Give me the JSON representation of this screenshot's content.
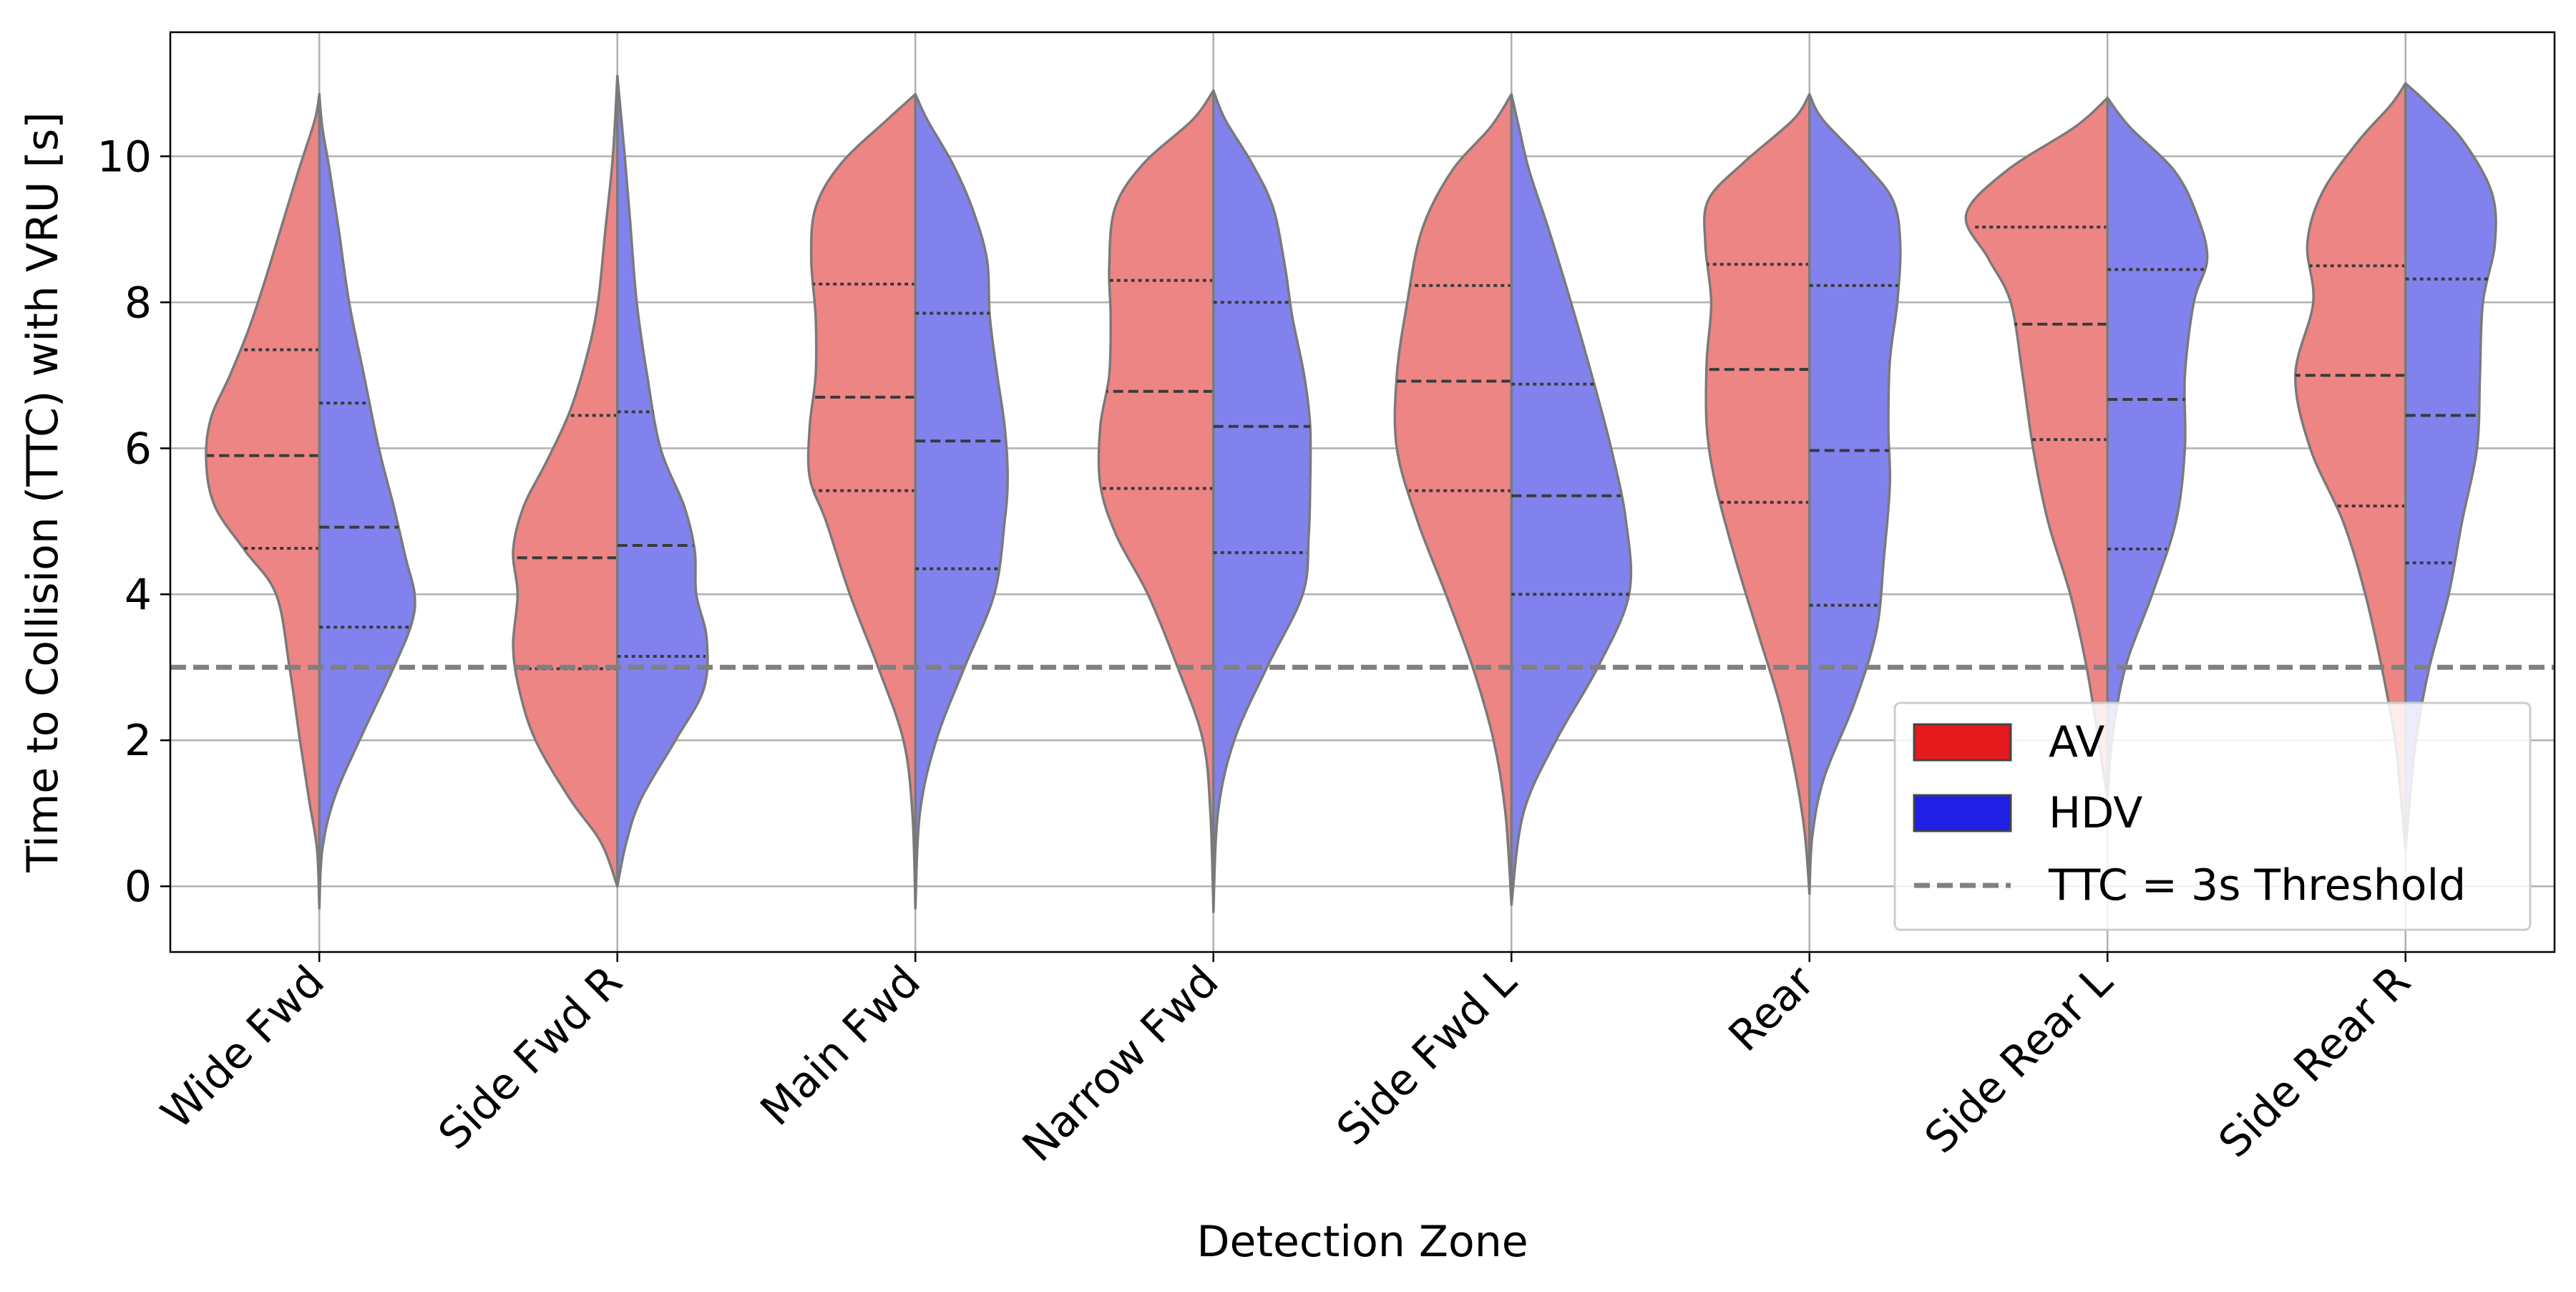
{
  "chart_data": {
    "type": "split-violin",
    "xlabel": "Detection Zone",
    "ylabel": "Time to Collision (TTC) with VRU [s]",
    "ylim": [
      -0.9,
      11.7
    ],
    "yticks": [
      0,
      2,
      4,
      6,
      8,
      10
    ],
    "ytick_labels": [
      "0",
      "2",
      "4",
      "6",
      "8",
      "10"
    ],
    "grid": true,
    "legend_position": "lower-right",
    "categories": [
      "Wide Fwd",
      "Side Fwd R",
      "Main Fwd",
      "Narrow Fwd",
      "Side Fwd L",
      "Rear",
      "Side Rear L",
      "Side Rear R"
    ],
    "series": [
      {
        "name": "AV",
        "color": "#e41a1c",
        "fill": "#ee8585",
        "quartiles": [
          [
            4.63,
            5.9,
            7.35
          ],
          [
            2.98,
            4.5,
            6.45
          ],
          [
            5.42,
            6.7,
            8.25
          ],
          [
            5.45,
            6.78,
            8.3
          ],
          [
            5.42,
            6.92,
            8.23
          ],
          [
            5.26,
            7.08,
            8.52
          ],
          [
            6.12,
            7.7,
            9.03
          ],
          [
            5.21,
            7.0,
            8.5
          ]
        ],
        "shape": [
          [
            [
              -0.3,
              0
            ],
            [
              0.5,
              0.015
            ],
            [
              1.2,
              0.07
            ],
            [
              2.0,
              0.13
            ],
            [
              3.0,
              0.2
            ],
            [
              4.0,
              0.29
            ],
            [
              4.6,
              0.5
            ],
            [
              5.2,
              0.7
            ],
            [
              5.8,
              0.76
            ],
            [
              6.4,
              0.73
            ],
            [
              7.0,
              0.6
            ],
            [
              7.6,
              0.48
            ],
            [
              8.2,
              0.38
            ],
            [
              9.0,
              0.26
            ],
            [
              9.8,
              0.14
            ],
            [
              10.5,
              0.03
            ],
            [
              10.85,
              0
            ]
          ],
          [
            [
              0.0,
              0
            ],
            [
              0.6,
              0.11
            ],
            [
              1.2,
              0.32
            ],
            [
              2.0,
              0.55
            ],
            [
              2.7,
              0.66
            ],
            [
              3.3,
              0.7
            ],
            [
              4.0,
              0.67
            ],
            [
              4.6,
              0.7
            ],
            [
              5.2,
              0.63
            ],
            [
              5.8,
              0.48
            ],
            [
              6.5,
              0.32
            ],
            [
              7.3,
              0.2
            ],
            [
              8.0,
              0.13
            ],
            [
              9.0,
              0.08
            ],
            [
              10.0,
              0.03
            ],
            [
              11.1,
              0
            ]
          ],
          [
            [
              -0.3,
              0
            ],
            [
              1.0,
              0.02
            ],
            [
              2.0,
              0.08
            ],
            [
              3.0,
              0.25
            ],
            [
              4.0,
              0.44
            ],
            [
              5.0,
              0.6
            ],
            [
              5.6,
              0.71
            ],
            [
              6.3,
              0.71
            ],
            [
              7.0,
              0.67
            ],
            [
              7.8,
              0.67
            ],
            [
              8.6,
              0.7
            ],
            [
              9.3,
              0.67
            ],
            [
              9.9,
              0.5
            ],
            [
              10.5,
              0.19
            ],
            [
              10.85,
              0
            ]
          ],
          [
            [
              -0.35,
              0
            ],
            [
              1.0,
              0.02
            ],
            [
              2.0,
              0.07
            ],
            [
              3.0,
              0.24
            ],
            [
              4.0,
              0.44
            ],
            [
              4.8,
              0.65
            ],
            [
              5.5,
              0.76
            ],
            [
              6.3,
              0.76
            ],
            [
              7.0,
              0.7
            ],
            [
              7.8,
              0.69
            ],
            [
              8.5,
              0.7
            ],
            [
              9.3,
              0.66
            ],
            [
              9.9,
              0.47
            ],
            [
              10.5,
              0.14
            ],
            [
              10.9,
              0
            ]
          ],
          [
            [
              -0.25,
              0
            ],
            [
              1.0,
              0.04
            ],
            [
              2.0,
              0.12
            ],
            [
              3.0,
              0.26
            ],
            [
              4.0,
              0.44
            ],
            [
              5.0,
              0.63
            ],
            [
              6.0,
              0.77
            ],
            [
              7.0,
              0.77
            ],
            [
              8.0,
              0.7
            ],
            [
              9.0,
              0.6
            ],
            [
              9.8,
              0.4
            ],
            [
              10.4,
              0.14
            ],
            [
              10.85,
              0
            ]
          ],
          [
            [
              -0.1,
              0
            ],
            [
              0.7,
              0.03
            ],
            [
              1.5,
              0.09
            ],
            [
              2.5,
              0.2
            ],
            [
              3.5,
              0.35
            ],
            [
              4.5,
              0.5
            ],
            [
              5.5,
              0.63
            ],
            [
              6.3,
              0.69
            ],
            [
              7.2,
              0.69
            ],
            [
              8.0,
              0.66
            ],
            [
              8.8,
              0.7
            ],
            [
              9.4,
              0.68
            ],
            [
              9.9,
              0.45
            ],
            [
              10.5,
              0.11
            ],
            [
              10.85,
              0
            ]
          ],
          [
            [
              1.2,
              0
            ],
            [
              2.0,
              0.06
            ],
            [
              3.0,
              0.14
            ],
            [
              4.0,
              0.25
            ],
            [
              5.0,
              0.4
            ],
            [
              6.0,
              0.5
            ],
            [
              7.0,
              0.57
            ],
            [
              8.0,
              0.65
            ],
            [
              8.6,
              0.8
            ],
            [
              9.2,
              0.95
            ],
            [
              9.8,
              0.68
            ],
            [
              10.4,
              0.22
            ],
            [
              10.8,
              0
            ]
          ],
          [
            [
              0.5,
              0
            ],
            [
              1.2,
              0.03
            ],
            [
              2.0,
              0.07
            ],
            [
              3.0,
              0.16
            ],
            [
              4.0,
              0.27
            ],
            [
              5.0,
              0.42
            ],
            [
              6.0,
              0.64
            ],
            [
              7.0,
              0.74
            ],
            [
              8.0,
              0.62
            ],
            [
              8.8,
              0.66
            ],
            [
              9.5,
              0.56
            ],
            [
              10.2,
              0.32
            ],
            [
              10.7,
              0.1
            ],
            [
              11.0,
              0
            ]
          ]
        ]
      },
      {
        "name": "HDV",
        "color": "#1f1fe6",
        "fill": "#8282ee",
        "quartiles": [
          [
            3.55,
            4.92,
            6.62
          ],
          [
            3.15,
            4.67,
            6.5
          ],
          [
            4.35,
            6.1,
            7.85
          ],
          [
            4.57,
            6.3,
            8.0
          ],
          [
            4.0,
            5.35,
            6.88
          ],
          [
            3.85,
            5.97,
            8.23
          ],
          [
            4.62,
            6.67,
            8.45
          ],
          [
            4.43,
            6.45,
            8.32
          ]
        ],
        "shape": [
          [
            [
              -0.3,
              0
            ],
            [
              0.5,
              0.02
            ],
            [
              1.2,
              0.1
            ],
            [
              2.0,
              0.27
            ],
            [
              3.0,
              0.5
            ],
            [
              3.6,
              0.62
            ],
            [
              4.0,
              0.64
            ],
            [
              4.5,
              0.58
            ],
            [
              5.2,
              0.5
            ],
            [
              6.0,
              0.4
            ],
            [
              7.0,
              0.3
            ],
            [
              8.0,
              0.2
            ],
            [
              9.0,
              0.13
            ],
            [
              9.8,
              0.07
            ],
            [
              10.4,
              0.02
            ],
            [
              10.85,
              0
            ]
          ],
          [
            [
              0.0,
              0
            ],
            [
              0.6,
              0.06
            ],
            [
              1.2,
              0.16
            ],
            [
              2.0,
              0.39
            ],
            [
              2.7,
              0.58
            ],
            [
              3.4,
              0.6
            ],
            [
              4.0,
              0.53
            ],
            [
              4.6,
              0.52
            ],
            [
              5.2,
              0.45
            ],
            [
              6.0,
              0.29
            ],
            [
              7.0,
              0.2
            ],
            [
              8.0,
              0.13
            ],
            [
              9.0,
              0.09
            ],
            [
              10.0,
              0.05
            ],
            [
              11.1,
              0
            ]
          ],
          [
            [
              -0.3,
              0
            ],
            [
              1.0,
              0.03
            ],
            [
              2.0,
              0.14
            ],
            [
              3.0,
              0.33
            ],
            [
              4.0,
              0.53
            ],
            [
              5.0,
              0.6
            ],
            [
              5.6,
              0.62
            ],
            [
              6.3,
              0.6
            ],
            [
              7.0,
              0.55
            ],
            [
              7.8,
              0.5
            ],
            [
              8.6,
              0.48
            ],
            [
              9.3,
              0.38
            ],
            [
              9.9,
              0.25
            ],
            [
              10.5,
              0.08
            ],
            [
              10.85,
              0
            ]
          ],
          [
            [
              -0.35,
              0
            ],
            [
              1.0,
              0.03
            ],
            [
              2.0,
              0.14
            ],
            [
              3.0,
              0.36
            ],
            [
              4.0,
              0.6
            ],
            [
              4.8,
              0.64
            ],
            [
              5.5,
              0.65
            ],
            [
              6.3,
              0.65
            ],
            [
              7.0,
              0.61
            ],
            [
              7.8,
              0.53
            ],
            [
              8.5,
              0.48
            ],
            [
              9.3,
              0.4
            ],
            [
              9.9,
              0.26
            ],
            [
              10.5,
              0.08
            ],
            [
              10.9,
              0
            ]
          ],
          [
            [
              -0.25,
              0
            ],
            [
              1.0,
              0.08
            ],
            [
              2.0,
              0.3
            ],
            [
              3.0,
              0.58
            ],
            [
              4.0,
              0.79
            ],
            [
              5.0,
              0.77
            ],
            [
              6.0,
              0.67
            ],
            [
              7.0,
              0.54
            ],
            [
              8.0,
              0.4
            ],
            [
              9.0,
              0.25
            ],
            [
              9.8,
              0.12
            ],
            [
              10.4,
              0.05
            ],
            [
              10.85,
              0
            ]
          ],
          [
            [
              -0.1,
              0
            ],
            [
              0.7,
              0.02
            ],
            [
              1.5,
              0.1
            ],
            [
              2.5,
              0.3
            ],
            [
              3.5,
              0.45
            ],
            [
              4.5,
              0.5
            ],
            [
              5.5,
              0.54
            ],
            [
              6.3,
              0.53
            ],
            [
              7.2,
              0.54
            ],
            [
              8.0,
              0.59
            ],
            [
              8.8,
              0.61
            ],
            [
              9.4,
              0.56
            ],
            [
              9.9,
              0.37
            ],
            [
              10.5,
              0.09
            ],
            [
              10.85,
              0
            ]
          ],
          [
            [
              1.2,
              0
            ],
            [
              2.0,
              0.03
            ],
            [
              3.0,
              0.12
            ],
            [
              4.0,
              0.3
            ],
            [
              5.0,
              0.46
            ],
            [
              6.0,
              0.52
            ],
            [
              7.0,
              0.52
            ],
            [
              8.0,
              0.58
            ],
            [
              8.6,
              0.67
            ],
            [
              9.2,
              0.6
            ],
            [
              9.8,
              0.45
            ],
            [
              10.4,
              0.15
            ],
            [
              10.8,
              0
            ]
          ],
          [
            [
              0.5,
              0
            ],
            [
              1.2,
              0.03
            ],
            [
              2.0,
              0.07
            ],
            [
              3.0,
              0.16
            ],
            [
              4.0,
              0.29
            ],
            [
              5.0,
              0.38
            ],
            [
              6.0,
              0.48
            ],
            [
              7.0,
              0.5
            ],
            [
              8.0,
              0.52
            ],
            [
              8.8,
              0.6
            ],
            [
              9.5,
              0.58
            ],
            [
              10.2,
              0.39
            ],
            [
              10.7,
              0.16
            ],
            [
              11.0,
              0
            ]
          ]
        ]
      }
    ],
    "threshold": {
      "value": 3,
      "label": "TTC = 3s Threshold",
      "color": "#808080",
      "style": "dashed"
    }
  }
}
